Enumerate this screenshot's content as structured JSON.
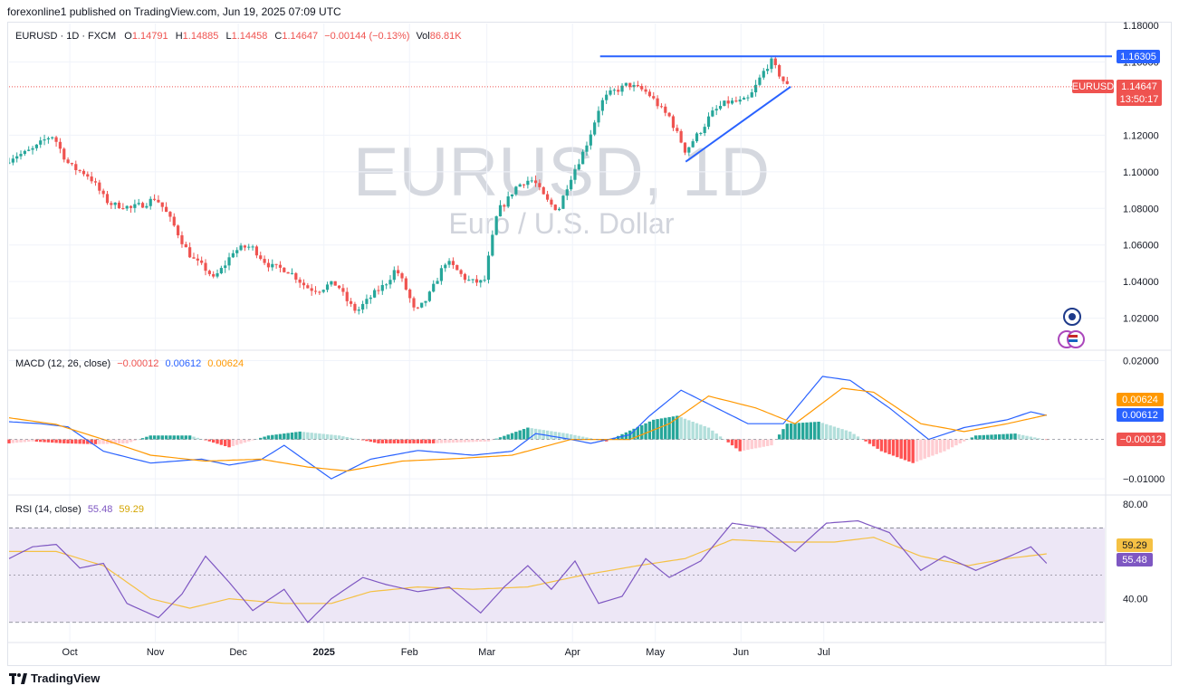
{
  "header": {
    "published": "forexonline1 published on TradingView.com, Jun 19, 2025 07:09 UTC"
  },
  "footer": {
    "brand": "TradingView",
    "logo_icon": "tradingview-logo-icon"
  },
  "watermark": {
    "symbol": "EURUSD, 1D",
    "name": "Euro / U.S. Dollar"
  },
  "colors": {
    "up": "#26a69a",
    "down": "#ef5350",
    "line": "#2962ff",
    "macd": "#2962ff",
    "signal": "#ff9800",
    "rsi": "#7e57c2",
    "rsi_ma": "#f5c144",
    "rsi_band": "#ede7f6"
  },
  "chart_data": [
    {
      "type": "candlestick",
      "title": "EURUSD · 1D · FXCM",
      "ohlc": {
        "o_label": "O",
        "o": "1.14791",
        "h_label": "H",
        "h": "1.14885",
        "l_label": "L",
        "l": "1.14458",
        "c_label": "C",
        "c": "1.14647",
        "change": "−0.00144 (−0.13%)",
        "vol_label": "Vol",
        "vol": "86.81K"
      },
      "ylim": [
        1.004,
        1.18
      ],
      "yticks": [
        "1.16000",
        "1.12000",
        "1.10000",
        "1.08000",
        "1.06000",
        "1.04000",
        "1.02000"
      ],
      "ytick_top": "1.18000",
      "x_months": [
        "Oct",
        "Nov",
        "Dec",
        "2025",
        "Feb",
        "Mar",
        "Apr",
        "May",
        "Jun",
        "Jul"
      ],
      "close_path": [
        [
          "2024-09-09",
          1.105
        ],
        [
          "2024-09-16",
          1.113
        ],
        [
          "2024-09-25",
          1.118
        ],
        [
          "2024-09-30",
          1.107
        ],
        [
          "2024-10-07",
          1.097
        ],
        [
          "2024-10-14",
          1.086
        ],
        [
          "2024-10-23",
          1.078
        ],
        [
          "2024-10-30",
          1.086
        ],
        [
          "2024-11-01",
          1.087
        ],
        [
          "2024-11-06",
          1.073
        ],
        [
          "2024-11-15",
          1.053
        ],
        [
          "2024-11-22",
          1.04
        ],
        [
          "2024-11-29",
          1.058
        ],
        [
          "2024-12-06",
          1.057
        ],
        [
          "2024-12-13",
          1.05
        ],
        [
          "2024-12-20",
          1.043
        ],
        [
          "2024-12-31",
          1.035
        ],
        [
          "2025-01-06",
          1.038
        ],
        [
          "2025-01-13",
          1.024
        ],
        [
          "2025-01-17",
          1.028
        ],
        [
          "2025-01-27",
          1.048
        ],
        [
          "2025-02-03",
          1.022
        ],
        [
          "2025-02-14",
          1.049
        ],
        [
          "2025-02-28",
          1.038
        ],
        [
          "2025-03-05",
          1.079
        ],
        [
          "2025-03-11",
          1.092
        ],
        [
          "2025-03-18",
          1.094
        ],
        [
          "2025-03-27",
          1.079
        ],
        [
          "2025-04-03",
          1.105
        ],
        [
          "2025-04-11",
          1.136
        ],
        [
          "2025-04-21",
          1.15
        ],
        [
          "2025-04-29",
          1.14
        ],
        [
          "2025-05-06",
          1.132
        ],
        [
          "2025-05-12",
          1.109
        ],
        [
          "2025-05-21",
          1.133
        ],
        [
          "2025-05-29",
          1.137
        ],
        [
          "2025-06-04",
          1.142
        ],
        [
          "2025-06-12",
          1.159
        ],
        [
          "2025-06-19",
          1.1465
        ]
      ],
      "resistance": {
        "value": "1.16305",
        "start": "2025-04-11"
      },
      "support_trend": {
        "start": [
          "2025-05-12",
          1.1055
        ],
        "end": [
          "2025-06-19",
          1.1465
        ]
      },
      "price_tag": {
        "symbol": "EURUSD",
        "price": "1.14647",
        "countdown": "13:50:17"
      }
    },
    {
      "type": "line",
      "title": "MACD (12, 26, close)",
      "values": [
        "−0.00012",
        "0.00612",
        "0.00624"
      ],
      "ylim": [
        -0.0125,
        0.0215
      ],
      "yticks": [
        "0.02000",
        "−0.01000"
      ],
      "series": [
        {
          "name": "MACD",
          "values": [
            [
              0,
              0.0045
            ],
            [
              8,
              0.004
            ],
            [
              15,
              0.0032
            ],
            [
              24,
              -0.003
            ],
            [
              36,
              -0.006
            ],
            [
              49,
              -0.005
            ],
            [
              56,
              -0.0065
            ],
            [
              64,
              -0.0052
            ],
            [
              70,
              -0.0015
            ],
            [
              82,
              -0.01
            ],
            [
              92,
              -0.005
            ],
            [
              104,
              -0.0028
            ],
            [
              118,
              -0.004
            ],
            [
              128,
              -0.003
            ],
            [
              134,
              0.0015
            ],
            [
              143,
              0.0
            ],
            [
              148,
              -0.001
            ],
            [
              158,
              0.0012
            ],
            [
              163,
              0.006
            ],
            [
              171,
              0.0125
            ],
            [
              180,
              0.008
            ],
            [
              188,
              0.004
            ],
            [
              197,
              0.004
            ],
            [
              207,
              0.016
            ],
            [
              214,
              0.015
            ],
            [
              224,
              0.008
            ],
            [
              234,
              0.0
            ],
            [
              243,
              0.003
            ],
            [
              254,
              0.005
            ],
            [
              260,
              0.007
            ],
            [
              264,
              0.0061
            ]
          ]
        },
        {
          "name": "Signal",
          "values": [
            [
              0,
              0.0055
            ],
            [
              12,
              0.0038
            ],
            [
              24,
              0.0
            ],
            [
              36,
              -0.004
            ],
            [
              50,
              -0.0055
            ],
            [
              64,
              -0.005
            ],
            [
              76,
              -0.007
            ],
            [
              86,
              -0.008
            ],
            [
              100,
              -0.0055
            ],
            [
              115,
              -0.0048
            ],
            [
              128,
              -0.004
            ],
            [
              143,
              0.0
            ],
            [
              158,
              0.0
            ],
            [
              168,
              0.004
            ],
            [
              178,
              0.011
            ],
            [
              190,
              0.008
            ],
            [
              200,
              0.004
            ],
            [
              212,
              0.013
            ],
            [
              220,
              0.012
            ],
            [
              232,
              0.004
            ],
            [
              243,
              0.002
            ],
            [
              254,
              0.004
            ],
            [
              264,
              0.0062
            ]
          ]
        }
      ],
      "histogram": [
        [
          0,
          -0.001
        ],
        [
          6,
          -0.0005
        ],
        [
          14,
          -0.001
        ],
        [
          22,
          -0.0012
        ],
        [
          30,
          -0.001
        ],
        [
          36,
          0.001
        ],
        [
          46,
          0.001
        ],
        [
          56,
          -0.002
        ],
        [
          66,
          0.001
        ],
        [
          74,
          0.002
        ],
        [
          84,
          0.001
        ],
        [
          94,
          -0.001
        ],
        [
          108,
          -0.001
        ],
        [
          122,
          -0.0005
        ],
        [
          132,
          0.003
        ],
        [
          142,
          0.0015
        ],
        [
          152,
          -0.0005
        ],
        [
          164,
          0.005
        ],
        [
          170,
          0.006
        ],
        [
          178,
          0.003
        ],
        [
          186,
          -0.003
        ],
        [
          194,
          -0.0015
        ],
        [
          198,
          0.004
        ],
        [
          206,
          0.0045
        ],
        [
          214,
          0.002
        ],
        [
          222,
          -0.003
        ],
        [
          230,
          -0.006
        ],
        [
          238,
          -0.003
        ],
        [
          246,
          0.001
        ],
        [
          256,
          0.0015
        ],
        [
          264,
          -0.0001
        ]
      ]
    },
    {
      "type": "line",
      "title": "RSI (14, close)",
      "values": [
        "55.48",
        "59.29"
      ],
      "ylim": [
        23,
        82
      ],
      "yticks": [
        "80.00",
        "40.00"
      ],
      "bands": [
        70,
        30
      ],
      "midline": 50,
      "series": [
        {
          "name": "RSI",
          "values": [
            [
              0,
              57
            ],
            [
              6,
              62
            ],
            [
              12,
              63
            ],
            [
              18,
              53
            ],
            [
              24,
              55
            ],
            [
              30,
              38
            ],
            [
              38,
              32
            ],
            [
              44,
              42
            ],
            [
              50,
              58
            ],
            [
              56,
              47
            ],
            [
              62,
              35
            ],
            [
              70,
              44
            ],
            [
              76,
              30
            ],
            [
              82,
              40
            ],
            [
              90,
              49
            ],
            [
              96,
              46
            ],
            [
              104,
              43
            ],
            [
              112,
              45
            ],
            [
              120,
              34
            ],
            [
              126,
              45
            ],
            [
              132,
              54
            ],
            [
              138,
              44
            ],
            [
              144,
              56
            ],
            [
              150,
              38
            ],
            [
              156,
              41
            ],
            [
              162,
              57
            ],
            [
              168,
              49
            ],
            [
              176,
              56
            ],
            [
              184,
              72
            ],
            [
              192,
              70
            ],
            [
              200,
              60
            ],
            [
              208,
              72
            ],
            [
              216,
              73
            ],
            [
              224,
              68
            ],
            [
              232,
              52
            ],
            [
              238,
              58
            ],
            [
              246,
              52
            ],
            [
              256,
              59
            ],
            [
              260,
              62
            ],
            [
              264,
              55
            ]
          ]
        },
        {
          "name": "RSI MA",
          "values": [
            [
              0,
              60
            ],
            [
              12,
              60
            ],
            [
              24,
              54
            ],
            [
              36,
              40
            ],
            [
              46,
              36
            ],
            [
              56,
              40
            ],
            [
              70,
              38
            ],
            [
              82,
              38
            ],
            [
              92,
              43
            ],
            [
              104,
              45
            ],
            [
              118,
              44
            ],
            [
              132,
              45
            ],
            [
              146,
              50
            ],
            [
              160,
              54
            ],
            [
              172,
              57
            ],
            [
              184,
              65
            ],
            [
              196,
              64
            ],
            [
              210,
              64
            ],
            [
              220,
              66
            ],
            [
              232,
              58
            ],
            [
              244,
              54
            ],
            [
              254,
              57
            ],
            [
              264,
              59
            ]
          ]
        }
      ]
    }
  ]
}
